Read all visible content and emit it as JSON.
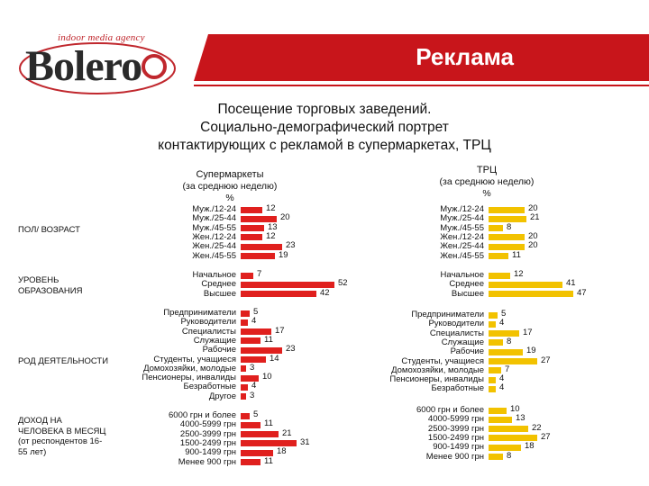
{
  "header": {
    "logo_sub": "indoor media agency",
    "logo_word": "Bolero",
    "section_title": "Реклама"
  },
  "colors": {
    "ribbon": "#c8151b",
    "bar_supermarket": "#e0201e",
    "bar_trc": "#f2c200"
  },
  "title_lines": [
    "Посещение торговых заведений.",
    "Социально-демографический портрет",
    "контактирующих с рекламой в супермаркетах, ТРЦ"
  ],
  "chart_data": {
    "type": "bar",
    "orientation": "horizontal",
    "columns": [
      {
        "title": "Супермаркеты",
        "subtitle": "(за среднюю неделю)",
        "unit": "%"
      },
      {
        "title": "ТРЦ",
        "subtitle": "(за среднюю неделю)",
        "unit": "%"
      }
    ],
    "sections": [
      {
        "label": "ПОЛ/ ВОЗРАСТ",
        "categories": [
          "Муж./12-24",
          "Муж./25-44",
          "Муж./45-55",
          "Жен./12-24",
          "Жен./25-44",
          "Жен./45-55"
        ],
        "series": [
          {
            "values": [
              12,
              20,
              13,
              12,
              23,
              19
            ]
          },
          {
            "values": [
              20,
              21,
              8,
              20,
              20,
              11
            ]
          }
        ]
      },
      {
        "label": "УРОВЕНЬ ОБРАЗОВАНИЯ",
        "categories": [
          "Начальное",
          "Среднее",
          "Высшее"
        ],
        "series": [
          {
            "values": [
              7,
              52,
              42
            ]
          },
          {
            "values": [
              12,
              41,
              47
            ]
          }
        ]
      },
      {
        "label": "РОД ДЕЯТЕЛЬНОСТИ",
        "categories_supermarket": [
          "Предприниматели",
          "Руководители",
          "Специалисты",
          "Служащие",
          "Рабочие",
          "Студенты, учащиеся",
          "Домохозяйки, молодые",
          "Пенсионеры, инвалиды",
          "Безработные",
          "Другое"
        ],
        "categories_trc": [
          "Предприниматели",
          "Руководители",
          "Специалисты",
          "Служащие",
          "Рабочие",
          "Студенты, учащиеся",
          "Домохозяйки, молодые",
          "Пенсионеры, инвалиды",
          "Безработные"
        ],
        "series": [
          {
            "values": [
              5,
              4,
              17,
              11,
              23,
              14,
              3,
              10,
              4,
              3
            ]
          },
          {
            "values": [
              5,
              4,
              17,
              8,
              19,
              27,
              7,
              4,
              4
            ]
          }
        ]
      },
      {
        "label": "ДОХОД НА ЧЕЛОВЕКА В МЕСЯЦ (от респондентов 16-55 лет)",
        "categories_supermarket": [
          "6000 грн и более",
          "4000-5999 грн",
          "2500-3999 грн",
          "1500-2499 грн",
          "900-1499 грн",
          "Менее 900 грн"
        ],
        "categories_trc": [
          "6000 грн и более",
          "4000-5999 грн",
          "2500-3999 грн",
          "1500-2499 грн",
          "900-1499 грн",
          "Менее 900 грн"
        ],
        "series": [
          {
            "values": [
              5,
              11,
              21,
              31,
              18,
              11
            ]
          },
          {
            "values": [
              10,
              13,
              22,
              27,
              18,
              8
            ]
          }
        ]
      }
    ]
  }
}
